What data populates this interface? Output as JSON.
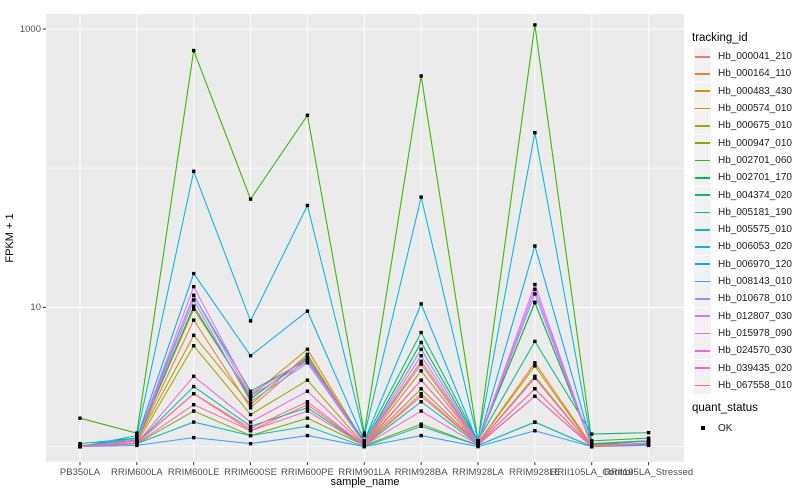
{
  "chart_data": {
    "type": "line",
    "title": "",
    "xlabel": "sample_name",
    "ylabel": "FPKM + 1",
    "y_scale": "log10",
    "y_axis": {
      "ticks": [
        {
          "label": "1000",
          "value": 1000
        },
        {
          "label": "10",
          "value": 10
        }
      ],
      "gridlines_major": [
        10,
        1000
      ],
      "gridlines_minor": [
        1,
        100
      ]
    },
    "panel_bg": "#EBEBEB",
    "grid_color": "#FFFFFF",
    "tick_color": "#333333",
    "axis_text_color": "#4D4D4D",
    "point": {
      "shape": "square",
      "color": "#000000"
    },
    "categories": [
      "PB350LA",
      "RRIM600LA",
      "RRIM600LE",
      "RRIM600SE",
      "RRIM600PE",
      "RRIM901LA",
      "RRIM928BA",
      "RRIM928LA",
      "RRIM928LE",
      "RRII105LA_Control",
      "RRII105LA_Stressed"
    ],
    "series": [
      {
        "name": "Hb_000041_210",
        "color": "#F8766D",
        "values": [
          1.02,
          1.06,
          2.4,
          1.3,
          2.0,
          1.02,
          2.3,
          1.05,
          2.6,
          1.0,
          1.06
        ]
      },
      {
        "name": "Hb_000164_110",
        "color": "#EA8331",
        "values": [
          1.0,
          1.1,
          8.1,
          1.9,
          4.3,
          1.05,
          3.0,
          1.06,
          4.0,
          1.02,
          1.06
        ]
      },
      {
        "name": "Hb_000483_430",
        "color": "#D89000",
        "values": [
          1.0,
          1.12,
          9.7,
          2.3,
          5.0,
          1.06,
          4.1,
          1.08,
          10.9,
          1.02,
          1.1
        ]
      },
      {
        "name": "Hb_000574_010",
        "color": "#C09B00",
        "values": [
          1.0,
          1.1,
          6.3,
          2.0,
          4.6,
          1.05,
          3.5,
          1.06,
          3.8,
          1.0,
          1.06
        ]
      },
      {
        "name": "Hb_000675_010",
        "color": "#A3A500",
        "values": [
          1.0,
          1.06,
          5.3,
          1.7,
          3.0,
          1.03,
          2.6,
          1.05,
          3.2,
          1.0,
          1.05
        ]
      },
      {
        "name": "Hb_000947_010",
        "color": "#7CAE00",
        "values": [
          1.0,
          1.05,
          1.8,
          1.2,
          1.6,
          1.02,
          1.45,
          1.02,
          1.5,
          1.0,
          1.05
        ]
      },
      {
        "name": "Hb_002701_060",
        "color": "#39B600",
        "values": [
          1.6,
          1.25,
          700,
          60,
          240,
          1.25,
          460,
          1.1,
          1070,
          1.1,
          1.15
        ]
      },
      {
        "name": "Hb_002701_170",
        "color": "#00BB4E",
        "values": [
          1.0,
          1.1,
          10.2,
          2.2,
          4.4,
          1.06,
          5.6,
          1.08,
          10.8,
          1.04,
          1.1
        ]
      },
      {
        "name": "Hb_004374_020",
        "color": "#00BF7D",
        "values": [
          1.05,
          1.15,
          12.2,
          2.5,
          4.2,
          1.1,
          6.6,
          1.1,
          5.7,
          1.23,
          1.26
        ]
      },
      {
        "name": "Hb_005181_190",
        "color": "#00C1A3",
        "values": [
          1.0,
          1.06,
          2.7,
          1.4,
          1.9,
          1.02,
          2.1,
          1.04,
          2.3,
          1.0,
          1.05
        ]
      },
      {
        "name": "Hb_005575_010",
        "color": "#00BFC4",
        "values": [
          1.0,
          1.05,
          1.5,
          1.2,
          1.4,
          1.0,
          1.4,
          1.02,
          1.5,
          1.0,
          1.04
        ]
      },
      {
        "name": "Hb_006053_020",
        "color": "#00BAE0",
        "values": [
          1.0,
          1.2,
          95,
          8.0,
          54,
          1.2,
          62,
          1.1,
          180,
          1.05,
          1.1
        ]
      },
      {
        "name": "Hb_006970_120",
        "color": "#00B0F6",
        "values": [
          1.0,
          1.15,
          17.5,
          4.5,
          9.4,
          1.1,
          10.6,
          1.06,
          27.6,
          1.05,
          1.1
        ]
      },
      {
        "name": "Hb_008143_010",
        "color": "#35A2FF",
        "values": [
          1.0,
          1.02,
          1.16,
          1.05,
          1.2,
          1.0,
          1.2,
          1.0,
          1.3,
          1.0,
          1.02
        ]
      },
      {
        "name": "Hb_010678_010",
        "color": "#9590FF",
        "values": [
          1.0,
          1.1,
          11.3,
          2.1,
          4.0,
          1.05,
          5.0,
          1.06,
          12.5,
          1.0,
          1.06
        ]
      },
      {
        "name": "Hb_012807_030",
        "color": "#C77CFF",
        "values": [
          1.0,
          1.1,
          12.2,
          2.3,
          4.1,
          1.05,
          4.5,
          1.06,
          13.5,
          1.0,
          1.06
        ]
      },
      {
        "name": "Hb_015978_090",
        "color": "#E76BF3",
        "values": [
          1.0,
          1.1,
          14.1,
          2.4,
          4.3,
          1.06,
          3.9,
          1.06,
          14.6,
          1.0,
          1.06
        ]
      },
      {
        "name": "Hb_024570_030",
        "color": "#FA62DB",
        "values": [
          1.0,
          1.06,
          3.2,
          1.5,
          2.5,
          1.02,
          3.0,
          1.05,
          3.1,
          1.0,
          1.05
        ]
      },
      {
        "name": "Hb_039435_020",
        "color": "#FF62BC",
        "values": [
          1.0,
          1.05,
          2.0,
          1.3,
          1.8,
          1.02,
          1.8,
          1.03,
          2.3,
          1.0,
          1.05
        ]
      },
      {
        "name": "Hb_067558_010",
        "color": "#FF6A98",
        "values": [
          1.0,
          1.06,
          2.4,
          1.35,
          2.1,
          1.02,
          2.4,
          1.05,
          2.6,
          1.0,
          1.06
        ]
      }
    ]
  },
  "legend": {
    "tracking_id": {
      "title": "tracking_id"
    },
    "quant_status": {
      "title": "quant_status",
      "items": [
        {
          "label": "OK",
          "symbol": "black-square"
        }
      ]
    }
  }
}
